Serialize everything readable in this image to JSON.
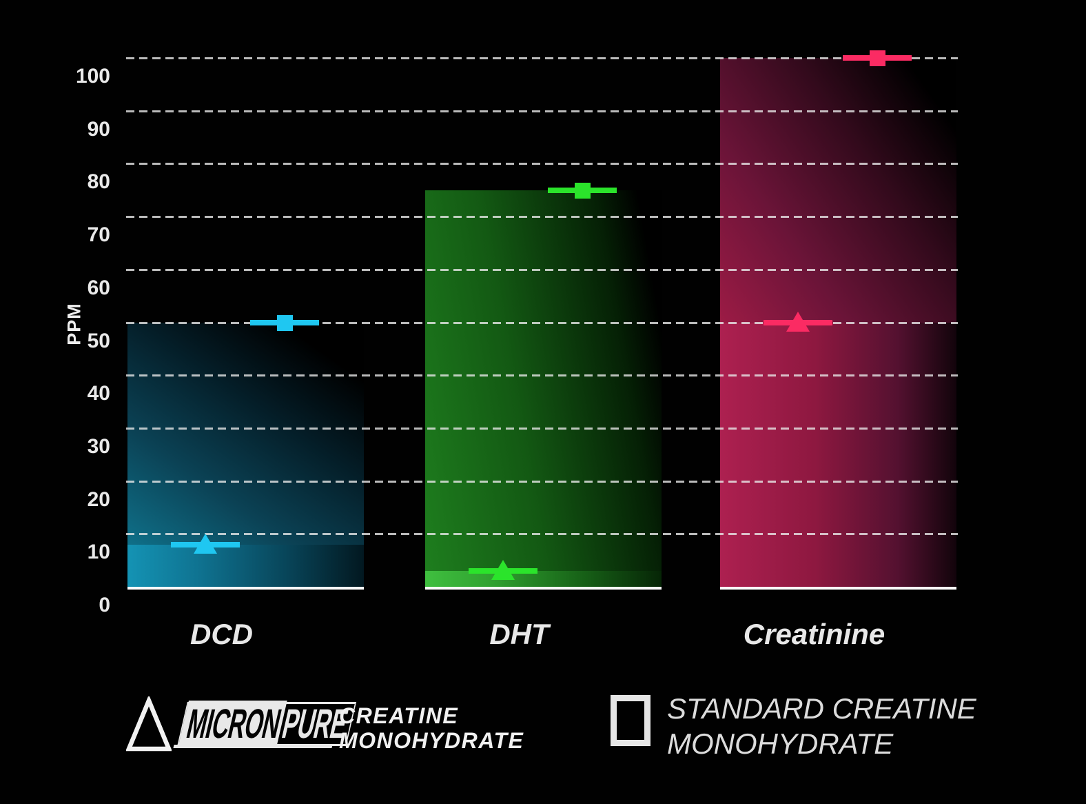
{
  "chart_data": {
    "type": "bar",
    "title": "",
    "categories": [
      "DCD",
      "DHT",
      "Creatinine"
    ],
    "series": [
      {
        "name": "MICRONPURE CREATINE MONOHYDRATE",
        "marker": "triangle",
        "values": [
          8,
          3,
          50
        ]
      },
      {
        "name": "STANDARD CREATINE MONOHYDRATE",
        "marker": "square",
        "values": [
          50,
          75,
          100
        ]
      }
    ],
    "xlabel": "",
    "ylabel": "PPM",
    "y_ticks": [
      0,
      10,
      20,
      30,
      40,
      50,
      60,
      70,
      80,
      90,
      100
    ],
    "ylim": [
      0,
      105
    ],
    "grid": "dashed-horizontal",
    "legend_position": "bottom",
    "style": {
      "background": "#010101",
      "gridline_color": "#E9E9E9",
      "axis_text_color": "#E9E9E9",
      "category_label_color": "#E8E8E8",
      "baseline_color": "#FBFBFB",
      "categories_style": {
        "DCD": {
          "marker_color": "#1FC7F1",
          "bar_top_stops": [
            [
              "#0F7089",
              "0%"
            ],
            [
              "#0B4255",
              "30%"
            ],
            [
              "#041D27",
              "60%"
            ],
            [
              "#000000",
              "85%"
            ]
          ],
          "bar_band_stops": [
            [
              "#1493B4",
              "0%"
            ],
            [
              "#0F7391",
              "30%"
            ],
            [
              "#084458",
              "68%"
            ],
            [
              "#021820",
              "100%"
            ]
          ]
        },
        "DHT": {
          "marker_color": "#2BE42B",
          "bar_top_stops": [
            [
              "#1E7E1E",
              "0%"
            ],
            [
              "#135913",
              "40%"
            ],
            [
              "#052005",
              "78%"
            ],
            [
              "#000000",
              "92%"
            ]
          ],
          "bar_band_stops": [
            [
              "#3FBF3F",
              "0%"
            ],
            [
              "#2F9F2F",
              "30%"
            ],
            [
              "#186418",
              "65%"
            ],
            [
              "#062506",
              "100%"
            ]
          ]
        },
        "Creatinine": {
          "marker_color": "#FB2B63",
          "bar_top_stops": [
            [
              "#9C1B45",
              "0%"
            ],
            [
              "#6B1438",
              "30%"
            ],
            [
              "#330A1C",
              "62%"
            ],
            [
              "#000000",
              "88%"
            ]
          ],
          "bar_band_stops": [
            [
              "#AD2050",
              "0%"
            ],
            [
              "#8E1840",
              "40%"
            ],
            [
              "#541130",
              "75%"
            ],
            [
              "#12040B",
              "100%"
            ]
          ]
        }
      }
    }
  },
  "legend": {
    "micronpure": {
      "icon": "triangle-outline-icon",
      "brand_micron": "MICRON",
      "brand_pure": "PURE",
      "label_line1": "CREATINE",
      "label_line2": "MONOHYDRATE"
    },
    "standard": {
      "icon": "square-outline-icon",
      "label_line1": "STANDARD CREATINE",
      "label_line2": "MONOHYDRATE"
    }
  }
}
